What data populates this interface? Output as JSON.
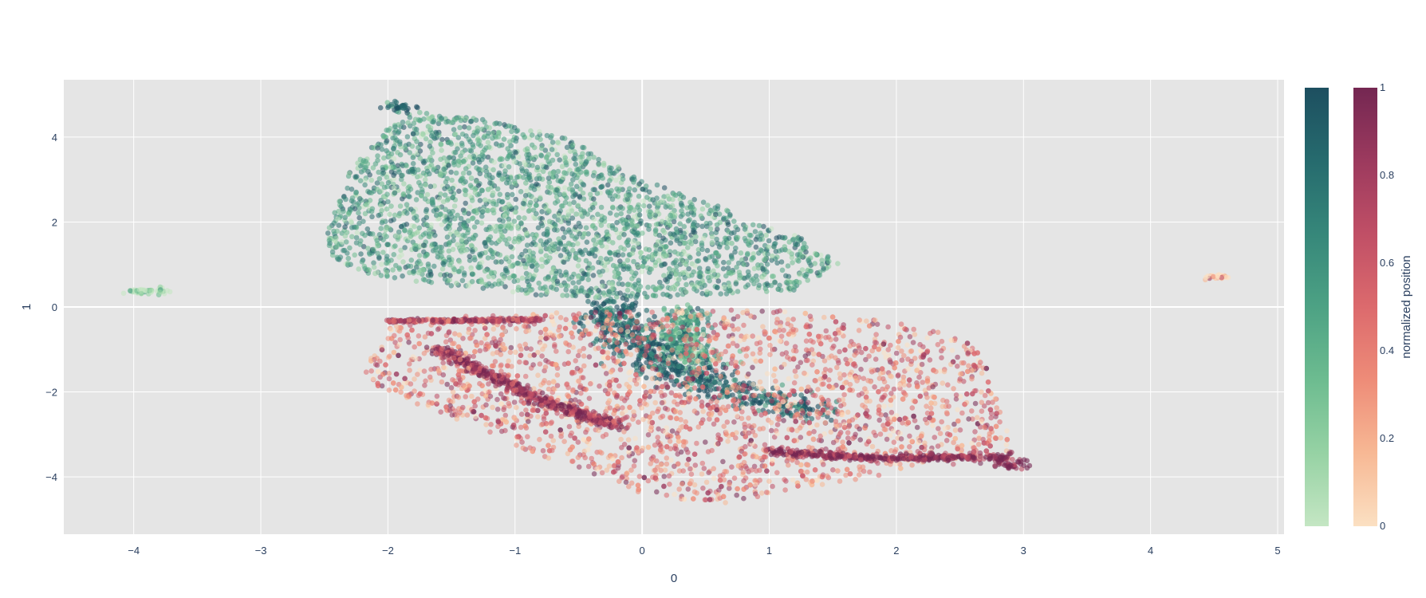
{
  "chart_data": {
    "type": "scatter",
    "xlabel": "0",
    "ylabel": "1",
    "xlim": [
      -4.55,
      5.05
    ],
    "ylim": [
      -5.35,
      5.35
    ],
    "x_ticks": [
      -4,
      -3,
      -2,
      -1,
      0,
      1,
      2,
      3,
      4,
      5
    ],
    "y_ticks": [
      -4,
      -2,
      0,
      2,
      4
    ],
    "x_tick_labels": [
      "−4",
      "−3",
      "−2",
      "−1",
      "0",
      "1",
      "2",
      "3",
      "4",
      "5"
    ],
    "y_tick_labels": [
      "−4",
      "−2",
      "0",
      "2",
      "4"
    ],
    "grid": true,
    "background": "#e5e5e5",
    "series": [
      {
        "colorscale": "green-teal",
        "colors": [
          "#c4e6c3",
          "#96d2a4",
          "#6dbc90",
          "#4da284",
          "#36877a",
          "#266b6e",
          "#1d4f60"
        ],
        "clusters": [
          {
            "shape": "polygon",
            "value": 0.5,
            "points": [
              [
                -2.5,
                1.6
              ],
              [
                -2.3,
                3.2
              ],
              [
                -2.0,
                4.2
              ],
              [
                -1.8,
                4.6
              ],
              [
                -1.2,
                4.4
              ],
              [
                -0.6,
                4.0
              ],
              [
                0.0,
                3.0
              ],
              [
                0.5,
                2.5
              ],
              [
                0.9,
                2.0
              ],
              [
                1.3,
                1.6
              ],
              [
                1.55,
                1.0
              ],
              [
                1.2,
                0.4
              ],
              [
                0.6,
                0.3
              ],
              [
                0.0,
                0.2
              ],
              [
                -0.6,
                0.2
              ],
              [
                -1.2,
                0.4
              ],
              [
                -1.8,
                0.6
              ],
              [
                -2.2,
                0.8
              ],
              [
                -2.45,
                1.2
              ]
            ]
          },
          {
            "shape": "band",
            "value": 0.85,
            "points": [
              [
                -0.25,
                0.1
              ],
              [
                -0.15,
                -0.6
              ],
              [
                0.2,
                -1.4
              ],
              [
                0.7,
                -2.0
              ],
              [
                1.35,
                -2.45
              ]
            ],
            "width": 0.28
          },
          {
            "shape": "band",
            "value": 0.5,
            "points": [
              [
                0.35,
                -0.1
              ],
              [
                0.3,
                -0.8
              ],
              [
                0.5,
                -1.3
              ]
            ],
            "width": 0.18
          },
          {
            "shape": "band",
            "value": 0.9,
            "points": [
              [
                -1.95,
                4.75
              ],
              [
                -1.85,
                4.65
              ]
            ],
            "width": 0.12
          },
          {
            "shape": "band",
            "value": 0.15,
            "points": [
              [
                -4.0,
                0.35
              ],
              [
                -3.75,
                0.4
              ]
            ],
            "width": 0.07
          }
        ]
      },
      {
        "colorscale": "peach-burgundy",
        "colors": [
          "#fbe0c2",
          "#f7b894",
          "#ee8c78",
          "#dc6a6d",
          "#c04f66",
          "#9c3a5e",
          "#742752"
        ],
        "clusters": [
          {
            "shape": "polygon",
            "value": 0.45,
            "points": [
              [
                -2.0,
                -0.3
              ],
              [
                -1.0,
                -0.15
              ],
              [
                0.0,
                -0.1
              ],
              [
                1.0,
                -0.05
              ],
              [
                2.0,
                -0.35
              ],
              [
                2.6,
                -0.8
              ],
              [
                2.85,
                -2.2
              ],
              [
                2.9,
                -3.3
              ],
              [
                2.95,
                -3.8
              ],
              [
                2.4,
                -3.7
              ],
              [
                1.8,
                -4.0
              ],
              [
                1.2,
                -4.3
              ],
              [
                0.6,
                -4.65
              ],
              [
                0.0,
                -4.4
              ],
              [
                -0.8,
                -3.5
              ],
              [
                -1.6,
                -2.5
              ],
              [
                -2.1,
                -1.9
              ],
              [
                -2.2,
                -1.4
              ],
              [
                -2.0,
                -0.8
              ]
            ]
          },
          {
            "shape": "band",
            "value": 0.95,
            "points": [
              [
                2.75,
                -3.5
              ],
              [
                2.95,
                -3.75
              ]
            ],
            "width": 0.12
          },
          {
            "shape": "band",
            "value": 0.85,
            "points": [
              [
                1.0,
                -3.4
              ],
              [
                1.8,
                -3.55
              ],
              [
                2.6,
                -3.55
              ]
            ],
            "width": 0.08
          },
          {
            "shape": "band",
            "value": 0.8,
            "points": [
              [
                -1.6,
                -1.0
              ],
              [
                -0.8,
                -2.2
              ],
              [
                -0.2,
                -2.8
              ]
            ],
            "width": 0.08
          },
          {
            "shape": "band",
            "value": 0.7,
            "points": [
              [
                -2.0,
                -0.33
              ],
              [
                -0.8,
                -0.3
              ]
            ],
            "width": 0.04
          },
          {
            "shape": "band",
            "value": 0.05,
            "points": [
              [
                4.45,
                0.7
              ],
              [
                4.6,
                0.72
              ]
            ],
            "width": 0.05
          }
        ]
      }
    ],
    "colorbars": [
      {
        "colors": [
          "#c4e6c3",
          "#96d2a4",
          "#6dbc90",
          "#4da284",
          "#36877a",
          "#266b6e",
          "#1d4f60"
        ],
        "ticks": [],
        "title": ""
      },
      {
        "colors": [
          "#fbe0c2",
          "#f7b894",
          "#ee8c78",
          "#dc6a6d",
          "#c04f66",
          "#9c3a5e",
          "#742752"
        ],
        "ticks": [
          0,
          0.2,
          0.4,
          0.6,
          0.8,
          1
        ],
        "tick_labels": [
          "0",
          "0.2",
          "0.4",
          "0.6",
          "0.8",
          "1"
        ],
        "title": "normalized position"
      }
    ]
  }
}
